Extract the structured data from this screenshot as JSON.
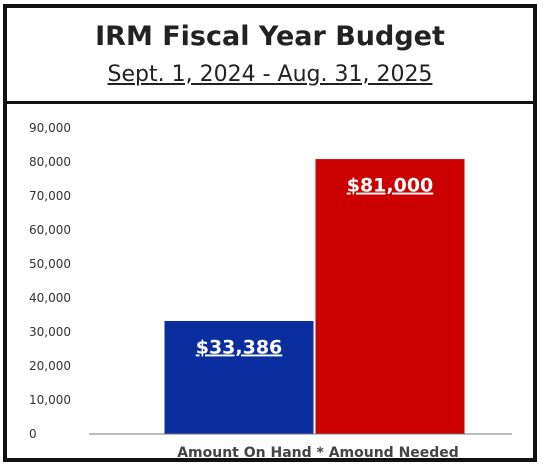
{
  "chart_data": {
    "type": "bar",
    "title": "IRM Fiscal Year Budget",
    "subtitle": "Sept. 1, 2024 - Aug. 31, 2025",
    "categories": [
      "Amount On Hand",
      "Amound Needed"
    ],
    "values": [
      33386,
      81000
    ],
    "data_labels": [
      "$33,386",
      "$81,000"
    ],
    "colors": [
      "#0b2e9f",
      "#cc0000"
    ],
    "xlabel": "Amount On Hand * Amound Needed",
    "ylabel": "",
    "ylim": [
      0,
      90000
    ],
    "yticks": [
      0,
      10000,
      20000,
      30000,
      40000,
      50000,
      60000,
      70000,
      80000,
      90000
    ],
    "ytick_labels": [
      "0",
      "10,000",
      "20,000",
      "30,000",
      "40,000",
      "50,000",
      "60,000",
      "70,000",
      "80,000",
      "90,000"
    ],
    "grid": false,
    "legend": "none"
  }
}
